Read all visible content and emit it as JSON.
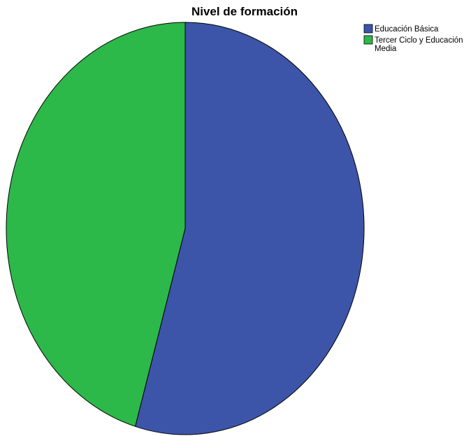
{
  "chart_data": {
    "type": "pie",
    "title": "Nivel de formación",
    "slices": [
      {
        "label": "Educación Básica",
        "value": 54.5,
        "color": "#3D55A8"
      },
      {
        "label": "Tercer Ciclo y Educación Media",
        "value": 45.5,
        "color": "#2DB84A"
      }
    ],
    "start_angle_deg": 0,
    "direction": "clockwise",
    "legend": {
      "position": "top-right",
      "entries": [
        {
          "lines": [
            "Educación Básica"
          ],
          "color": "#3D55A8"
        },
        {
          "lines": [
            "Tercer Ciclo y Educación",
            "Media"
          ],
          "color": "#2DB84A"
        }
      ]
    }
  }
}
